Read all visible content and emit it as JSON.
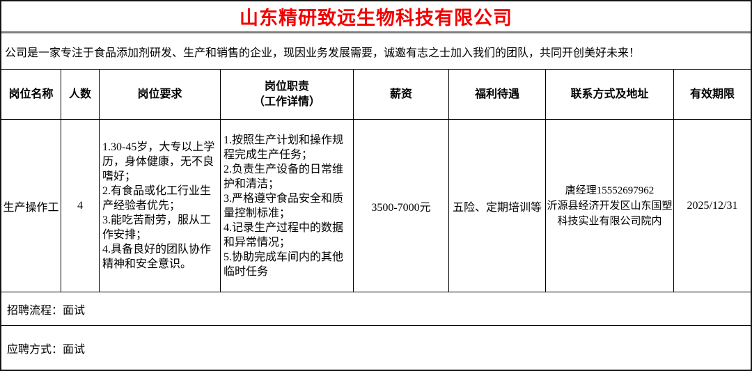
{
  "company": {
    "name": "山东精研致远生物科技有限公司",
    "intro": "公司是一家专注于食品添加剂研发、生产和销售的企业，现因业务发展需要，诚邀有志之士加入我们的团队，共同开创美好未来！"
  },
  "table": {
    "headers": {
      "position": "岗位名称",
      "headcount": "人数",
      "requirements": "岗位要求",
      "duties": "岗位职责\n（工作详情）",
      "salary": "薪资",
      "benefits": "福利待遇",
      "contact": "联系方式及地址",
      "validity": "有效期限"
    },
    "row": {
      "position": "生产操作工",
      "headcount": "4",
      "requirements": [
        "1.30-45岁，大专以上学历，身体健康，无不良嗜好；",
        "2.有食品或化工行业生产经验者优先；",
        "3.能吃苦耐劳，服从工作安排；",
        "4.具备良好的团队协作精神和安全意识。"
      ],
      "duties": [
        "1.按照生产计划和操作规程完成生产任务；",
        "2.负责生产设备的日常维护和清洁；",
        "3.严格遵守食品安全和质量控制标准；",
        "4.记录生产过程中的数据和异常情况；",
        "5.协助完成车间内的其他临时任务"
      ],
      "salary": "3500-7000元",
      "benefits": "五险、定期培训等",
      "contact_lines": [
        "唐经理15552697962",
        "沂源县经济开发区山东国塑",
        "科技实业有限公司院内"
      ],
      "validity": "2025/12/31"
    }
  },
  "footer": {
    "process": "招聘流程：面试",
    "apply": "应聘方式：面试"
  },
  "colors": {
    "title_red": "#f20000",
    "divider_gray": "#7f7f7f",
    "border_black": "#141414"
  }
}
